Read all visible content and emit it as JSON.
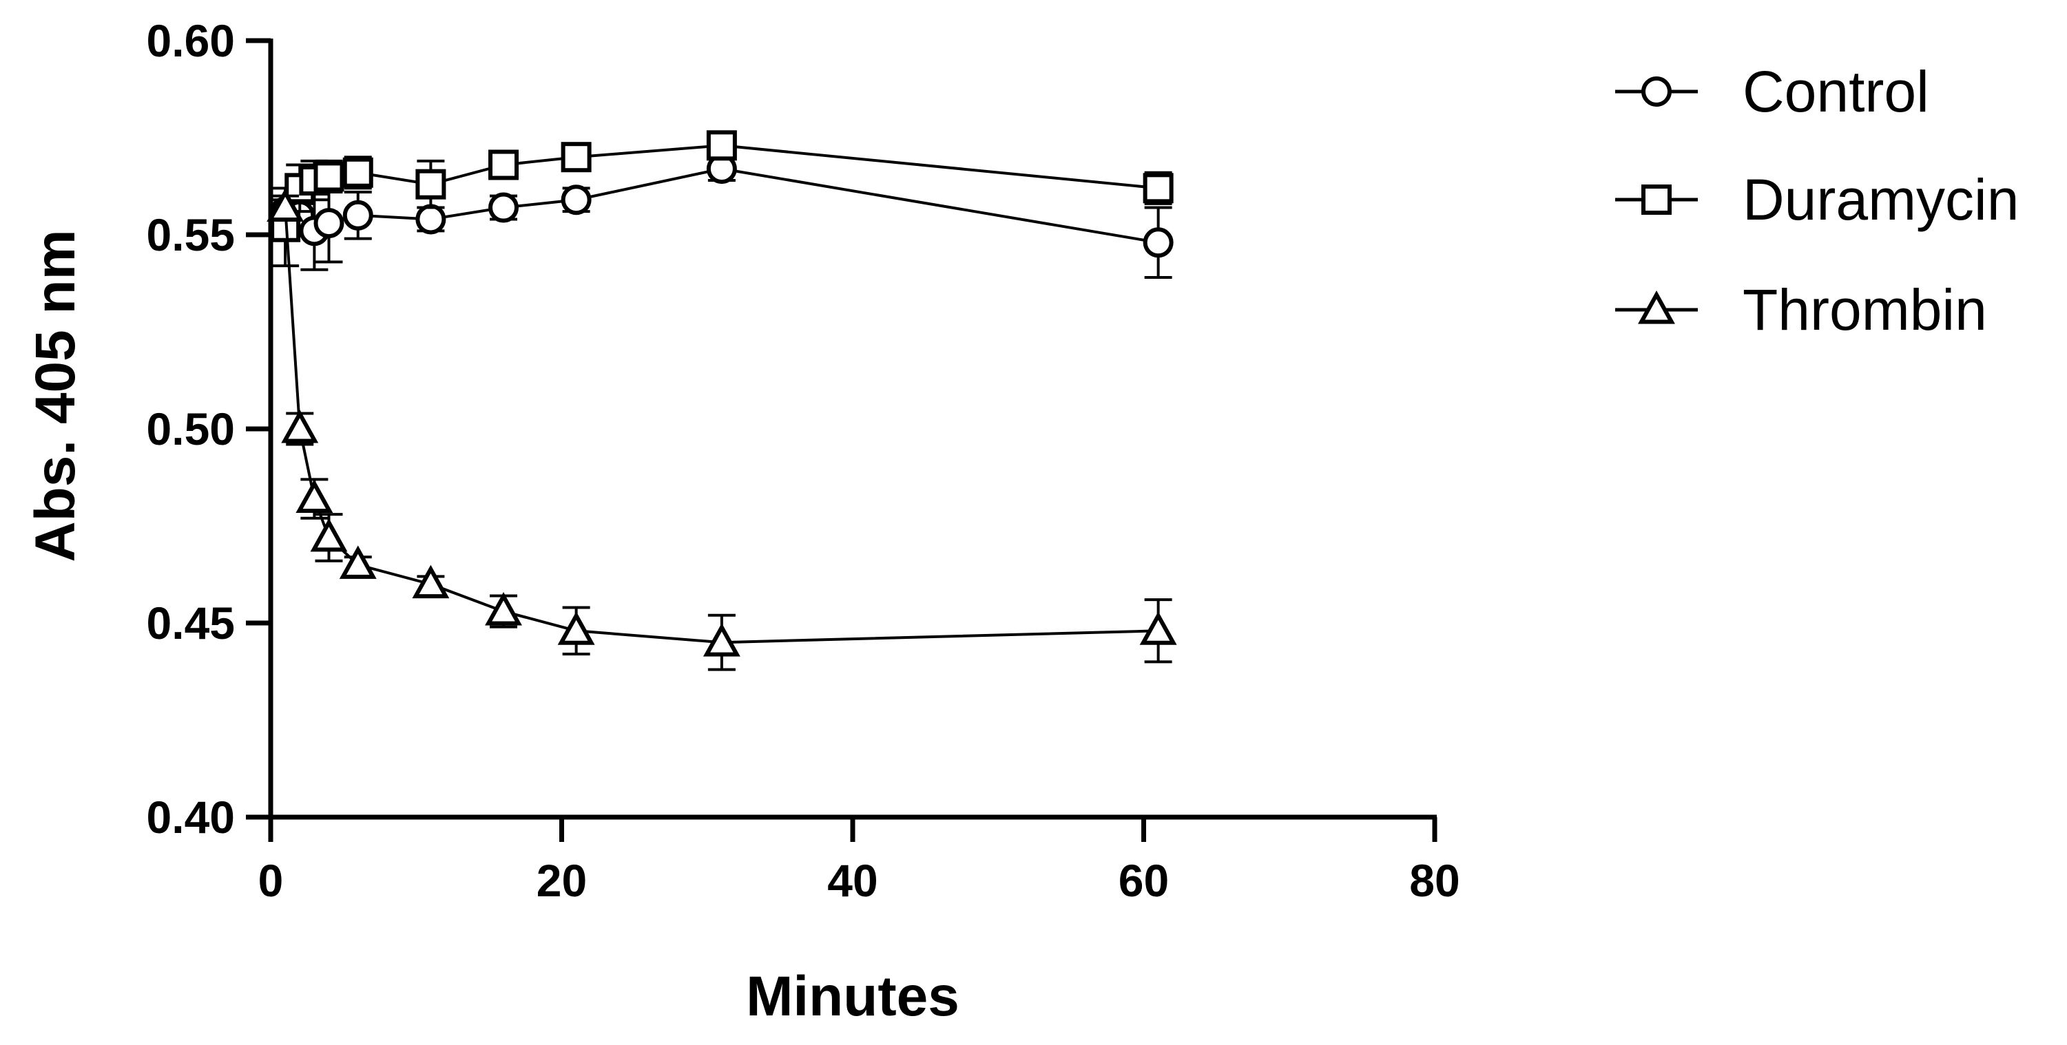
{
  "chart_data": {
    "type": "line",
    "title": "",
    "xlabel": "Minutes",
    "ylabel": "Abs. 405 nm",
    "xlim": [
      0,
      80
    ],
    "ylim": [
      0.4,
      0.6
    ],
    "xticks": [
      0,
      20,
      40,
      60,
      80
    ],
    "xtick_labels": [
      "0",
      "20",
      "40",
      "60",
      "80"
    ],
    "yticks": [
      0.4,
      0.45,
      0.5,
      0.55,
      0.6
    ],
    "ytick_labels": [
      "0.40",
      "0.45",
      "0.50",
      "0.55",
      "0.60"
    ],
    "grid": false,
    "legend_position": "top-right, outside plot",
    "series": [
      {
        "name": "Control",
        "marker": "circle",
        "x": [
          1,
          2,
          3,
          4,
          6,
          11,
          16,
          21,
          31,
          61
        ],
        "y": [
          0.556,
          0.555,
          0.551,
          0.553,
          0.555,
          0.554,
          0.557,
          0.559,
          0.567,
          0.548
        ],
        "error": [
          0.003,
          0.003,
          0.01,
          0.01,
          0.006,
          0.003,
          0.003,
          0.003,
          0.003,
          0.009
        ]
      },
      {
        "name": "Duramycin",
        "marker": "square",
        "x": [
          1,
          2,
          3,
          4,
          6,
          11,
          16,
          21,
          31,
          61
        ],
        "y": [
          0.552,
          0.562,
          0.564,
          0.565,
          0.566,
          0.563,
          0.568,
          0.57,
          0.573,
          0.562
        ],
        "error": [
          0.01,
          0.006,
          0.005,
          0.004,
          0.004,
          0.006,
          0.003,
          0.003,
          0.003,
          0.004
        ]
      },
      {
        "name": "Thrombin",
        "marker": "triangle",
        "x": [
          1,
          2,
          3,
          4,
          6,
          11,
          16,
          21,
          31,
          61
        ],
        "y": [
          0.557,
          0.5,
          0.482,
          0.472,
          0.465,
          0.46,
          0.453,
          0.448,
          0.445,
          0.448
        ],
        "error": [
          0.003,
          0.004,
          0.005,
          0.006,
          0.002,
          0.002,
          0.004,
          0.006,
          0.007,
          0.008
        ]
      }
    ]
  }
}
